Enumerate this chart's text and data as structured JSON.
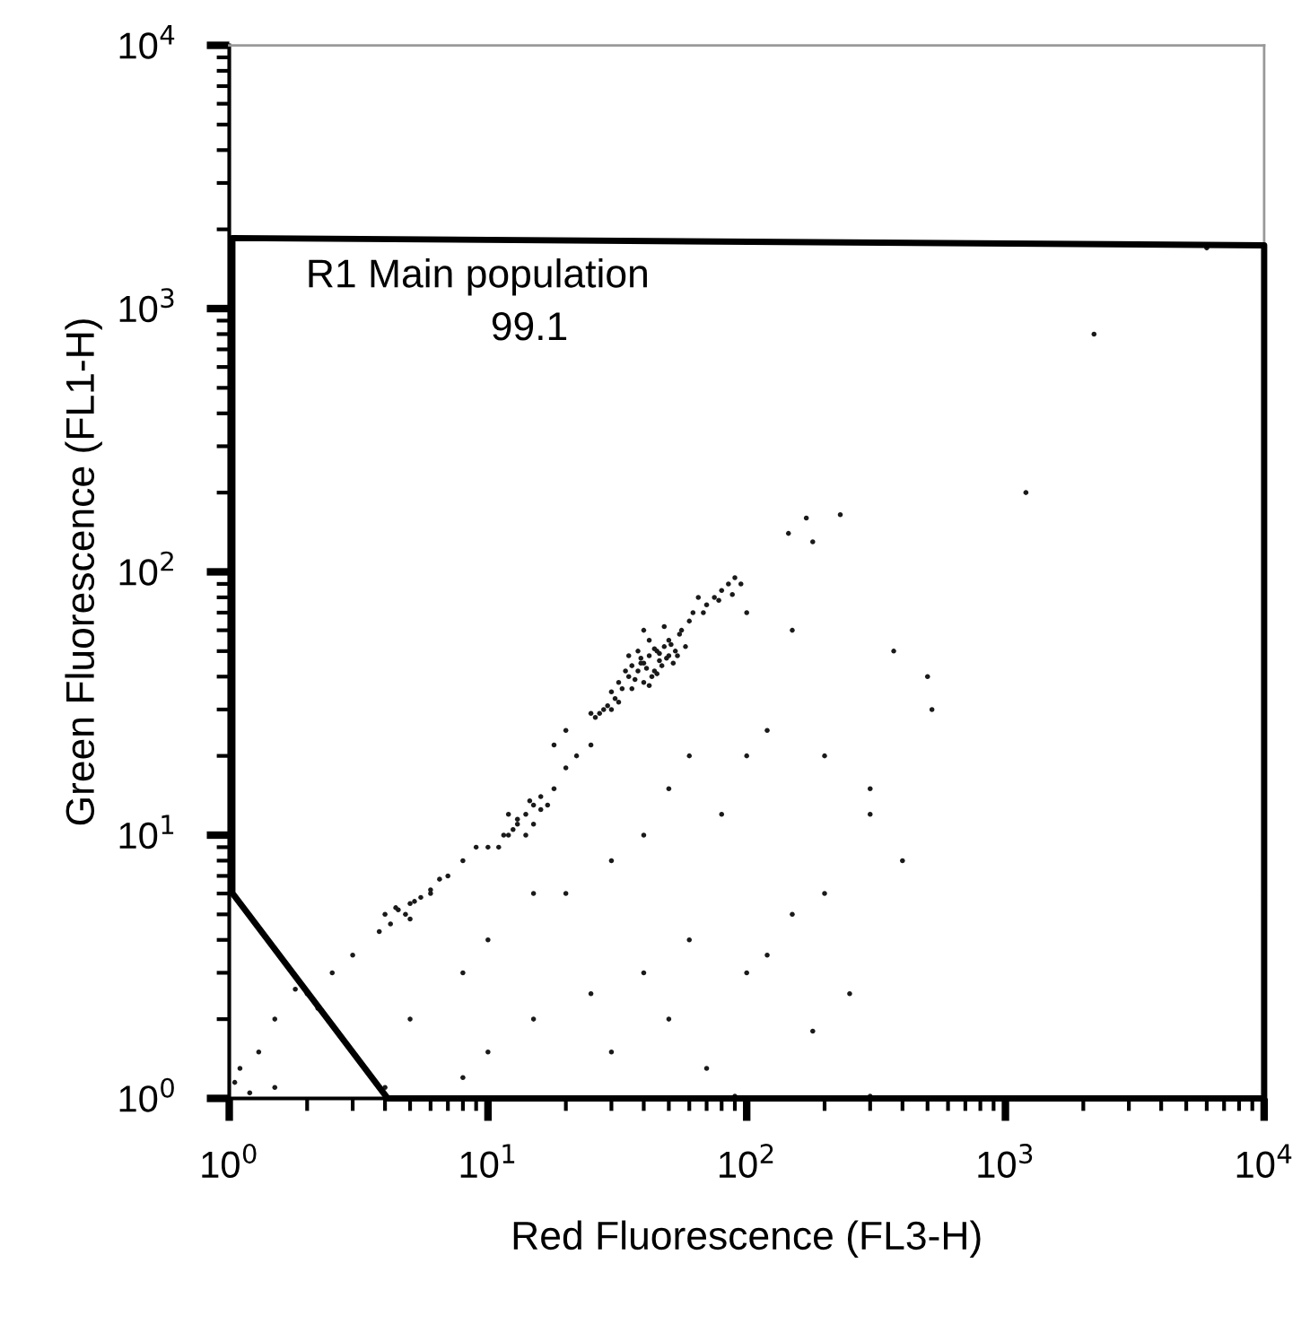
{
  "chart_data": {
    "type": "scatter",
    "xlabel": "Red Fluorescence (FL3-H)",
    "ylabel": "Green Fluorescence (FL1-H)",
    "log": "xy",
    "grid": false,
    "xlim": [
      1,
      10000
    ],
    "ylim": [
      1,
      10000
    ],
    "xticks": [
      {
        "value": 1,
        "label": "10$^{0}$"
      },
      {
        "value": 10,
        "label": "10$^{1}$"
      },
      {
        "value": 100,
        "label": "10$^{2}$"
      },
      {
        "value": 1000,
        "label": "10$^{3}$"
      },
      {
        "value": 10000,
        "label": "10$^{4}$"
      }
    ],
    "yticks": [
      {
        "value": 1,
        "label": "10$^{0}$"
      },
      {
        "value": 10,
        "label": "10$^{1}$"
      },
      {
        "value": 100,
        "label": "10$^{2}$"
      },
      {
        "value": 1000,
        "label": "10$^{3}$"
      },
      {
        "value": 10000,
        "label": "10$^{4}$"
      }
    ],
    "annotations": [
      "R1 Main population",
      "99.1"
    ],
    "series": [
      {
        "color": "#1a1a1a",
        "marker": "circle",
        "x": [
          30,
          32,
          35,
          38,
          40,
          42,
          45,
          48,
          50,
          36,
          33,
          40,
          44,
          46,
          38,
          35,
          42,
          50,
          55,
          52,
          28,
          26,
          30,
          25,
          32,
          60,
          62,
          58,
          40,
          48,
          36,
          43,
          39,
          47,
          53,
          34,
          37,
          41,
          44,
          49,
          51,
          45,
          39,
          42,
          46,
          31,
          29,
          27,
          56,
          54,
          70,
          75,
          80,
          85,
          90,
          95,
          68,
          65,
          78,
          88,
          170,
          180,
          230,
          145,
          100,
          150,
          370,
          500,
          520,
          1200,
          2200,
          6000,
          12,
          13,
          14,
          15,
          16,
          11,
          10,
          17,
          14,
          12,
          18,
          15,
          13,
          16,
          12.5,
          14.5,
          11.5,
          8,
          9,
          20,
          22,
          7,
          6,
          25,
          20,
          18,
          4,
          4.5,
          5,
          5.5,
          6,
          4.2,
          5,
          3.8,
          6.5,
          4.8,
          5.2,
          4.4,
          3,
          2.5,
          2,
          2.2,
          1.8,
          1.5,
          1.3,
          1.1,
          1.05,
          1.2,
          1.5,
          20,
          30,
          40,
          50,
          60,
          80,
          100,
          120,
          200,
          300,
          300,
          400,
          150,
          100,
          60,
          40,
          25,
          15,
          10,
          8,
          30,
          50,
          70,
          120,
          200,
          250,
          180,
          10,
          15,
          8,
          5,
          90,
          300,
          4
        ],
        "values": [
          35,
          38,
          40,
          42,
          45,
          48,
          50,
          52,
          55,
          44,
          36,
          38,
          42,
          46,
          50,
          48,
          55,
          48,
          58,
          45,
          30,
          28,
          30,
          29,
          32,
          65,
          70,
          52,
          60,
          62,
          36,
          40,
          47,
          44,
          50,
          42,
          39,
          43,
          51,
          47,
          53,
          41,
          45,
          37,
          49,
          33,
          31,
          29,
          60,
          48,
          75,
          80,
          85,
          90,
          95,
          90,
          70,
          80,
          78,
          82,
          160,
          130,
          165,
          140,
          70,
          60,
          50,
          40,
          30,
          200,
          800,
          1700,
          10,
          11,
          12,
          13,
          14,
          9,
          9,
          13,
          10,
          12,
          15,
          11,
          11.5,
          12.5,
          10.5,
          13.5,
          10,
          8,
          9,
          18,
          20,
          7,
          6,
          22,
          25,
          22,
          5,
          5.2,
          5.5,
          5.8,
          6.2,
          4.6,
          4.8,
          4.3,
          6.8,
          5,
          5.6,
          5.3,
          3.5,
          3,
          2.5,
          2.2,
          2.6,
          2,
          1.5,
          1.3,
          1.15,
          1.05,
          1.1,
          6,
          8,
          10,
          15,
          20,
          12,
          20,
          25,
          20,
          15,
          12,
          8,
          5,
          3,
          4,
          3,
          2.5,
          2,
          1.5,
          1.2,
          1.5,
          2,
          1.3,
          3.5,
          6,
          2.5,
          1.8,
          4,
          6,
          3,
          2,
          1.02,
          1.02,
          1.1
        ]
      }
    ]
  }
}
